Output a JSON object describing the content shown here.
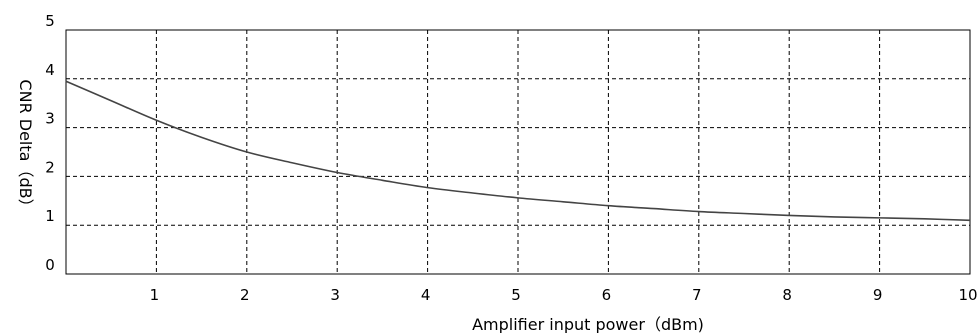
{
  "chart_data": {
    "type": "line",
    "title": "",
    "xlabel": "Amplifier input power（dBm)",
    "ylabel": "CNR Delta（dB）",
    "xlim": [
      0,
      10
    ],
    "ylim": [
      0,
      5
    ],
    "x_ticks": [
      "1",
      "2",
      "3",
      "4",
      "5",
      "6",
      "7",
      "8",
      "9",
      "10"
    ],
    "y_ticks": [
      "0",
      "1",
      "2",
      "3",
      "4",
      "5"
    ],
    "grid": true,
    "series": [
      {
        "color": "#444444",
        "x": [
          0,
          0.5,
          1,
          1.5,
          2,
          2.5,
          3,
          3.5,
          4,
          4.5,
          5,
          5.5,
          6,
          6.5,
          7,
          7.5,
          8,
          8.5,
          9,
          9.5,
          10
        ],
        "y": [
          3.95,
          3.55,
          3.15,
          2.8,
          2.5,
          2.28,
          2.08,
          1.92,
          1.77,
          1.66,
          1.56,
          1.48,
          1.4,
          1.34,
          1.28,
          1.24,
          1.2,
          1.17,
          1.15,
          1.13,
          1.1
        ]
      }
    ]
  }
}
